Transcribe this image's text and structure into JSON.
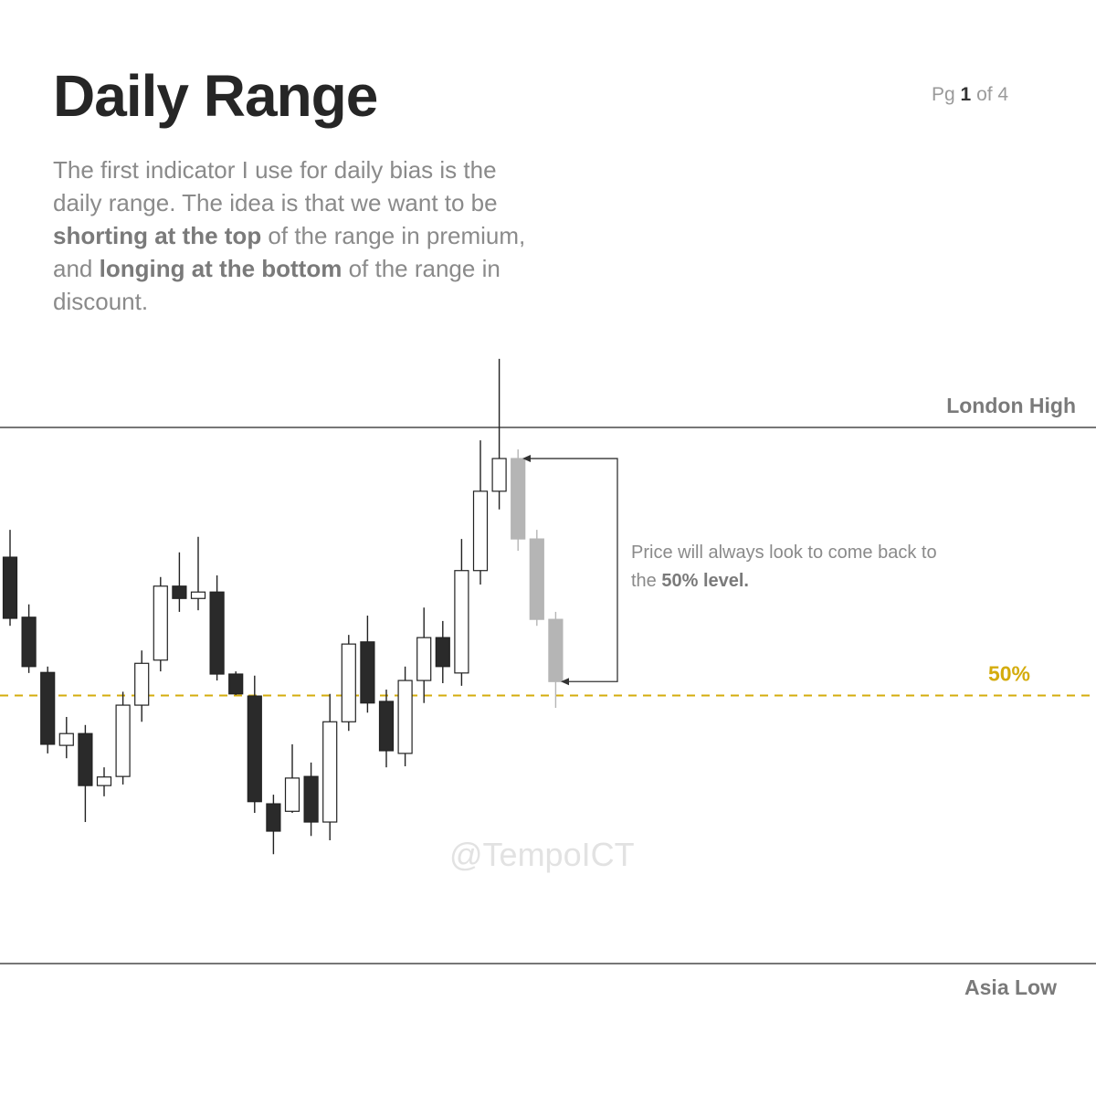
{
  "chart_data": {
    "type": "candlestick",
    "title": "Daily Range",
    "page": {
      "prefix": "Pg",
      "number": 1,
      "suffix": "of 4"
    },
    "paragraph": [
      "The first indicator I use for daily bias is the daily range. The idea is that we want to be ",
      "shorting at the top",
      " of the range in premium, and ",
      "longing at the bottom",
      " of the range in discount."
    ],
    "annotation": [
      "Price will always look to come back to the ",
      "50% level."
    ],
    "watermark": "@TempoICT",
    "ylim": [
      0,
      100
    ],
    "levels": [
      {
        "label": "London High",
        "value": 100,
        "color": "#777777"
      },
      {
        "label": "Asia Low",
        "value": 0,
        "color": "#777777"
      },
      {
        "label": "50%",
        "value": 50,
        "color": "#d4ac0d"
      }
    ],
    "up_color": "#ffffff",
    "down_color": "#2a2a2a",
    "historical": {
      "open": [
        75.8,
        64.6,
        54.3,
        40.7,
        42.9,
        33.2,
        34.9,
        48.2,
        56.6,
        70.4,
        68.1,
        69.3,
        54.0,
        49.9,
        29.8,
        28.4,
        34.9,
        26.4,
        45.1,
        60.0,
        48.9,
        39.2,
        52.8,
        60.8,
        54.2,
        73.3,
        88.1
      ],
      "high": [
        80.9,
        67.0,
        55.4,
        46.0,
        44.5,
        36.6,
        50.7,
        58.4,
        72.1,
        76.7,
        79.6,
        72.4,
        54.5,
        53.7,
        31.5,
        40.9,
        37.5,
        50.3,
        61.3,
        64.9,
        51.1,
        55.4,
        66.4,
        63.9,
        79.2,
        97.6,
        112.8
      ],
      "low": [
        63.0,
        54.2,
        39.2,
        38.3,
        26.4,
        31.2,
        33.4,
        45.1,
        54.5,
        65.6,
        65.9,
        52.8,
        50.1,
        28.1,
        20.4,
        28.1,
        23.8,
        23.0,
        43.4,
        46.8,
        36.6,
        36.8,
        48.6,
        52.3,
        51.8,
        70.7,
        84.7
      ],
      "close": [
        64.4,
        55.4,
        40.9,
        42.9,
        33.2,
        34.8,
        48.2,
        56.0,
        70.4,
        68.1,
        69.3,
        54.0,
        50.3,
        30.2,
        24.7,
        34.6,
        26.4,
        45.1,
        59.6,
        48.6,
        39.7,
        52.8,
        60.8,
        55.4,
        73.3,
        88.1,
        94.2
      ]
    },
    "projection": {
      "color": "#b5b5b5",
      "open": [
        94.2,
        79.2,
        64.2
      ],
      "high": [
        95.9,
        80.9,
        65.6
      ],
      "low": [
        77.0,
        63.0,
        47.7
      ],
      "close": [
        79.2,
        64.2,
        52.6
      ]
    }
  }
}
